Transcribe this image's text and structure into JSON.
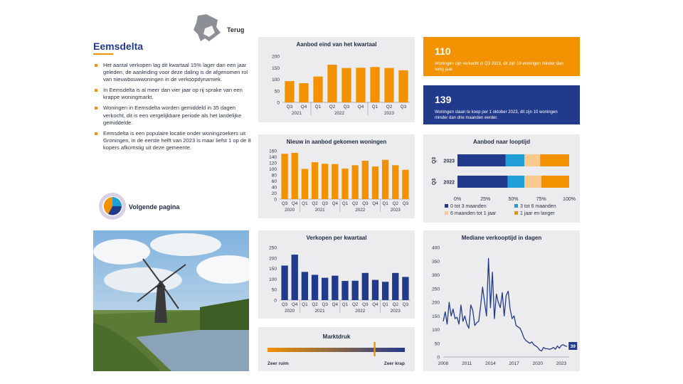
{
  "page": {
    "title": "Eemsdelta",
    "back_label": "Terug",
    "next_label": "Volgende pagina",
    "bullets": [
      "Het aantal verkopen lag dit kwartaal 15% lager dan een jaar geleden, de aanleiding voor deze daling is de afgenomen rol van nieuwbouwwoningen in de verkoopdynamiek.",
      "In Eemsdelta is al meer dan vier jaar op rij sprake van een krappe woningmarkt.",
      "Woningen in Eemsdelta worden gemiddeld in 35 dagen verkocht, dit is een vergelijkbare periode als het landelijke gemiddelde.",
      "Eemsdelta is een populaire locatie onder woningzoekers uit Groningen, in de eerste helft van 2023 is maar liefst 1 op de 8 kopers afkomstig uit deze gemeente."
    ]
  },
  "colors": {
    "orange": "#f39200",
    "navy": "#223a8c",
    "panel": "#ececee"
  },
  "kpis": [
    {
      "value": "110",
      "text": "Woningen zijn verkocht in Q3 2023, dit zijn 19 woningen minder dan vorig jaar.",
      "color": "#f39200"
    },
    {
      "value": "139",
      "text": "Woningen staan te koop per 1 oktober 2023, dit zijn 10 woningen minder dan drie maanden eerder.",
      "color": "#223a8c"
    }
  ],
  "chart_data": [
    {
      "id": "aanbod",
      "type": "bar",
      "title": "Aanbod eind van het kwartaal",
      "color": "#f39200",
      "categories": [
        "Q3",
        "Q4",
        "Q1",
        "Q2",
        "Q3",
        "Q4",
        "Q1",
        "Q2",
        "Q3"
      ],
      "groups": [
        {
          "label": "2021",
          "span": 2
        },
        {
          "label": "2022",
          "span": 4
        },
        {
          "label": "2023",
          "span": 3
        }
      ],
      "values": [
        92,
        83,
        112,
        163,
        149,
        150,
        153,
        149,
        139
      ],
      "ylim": [
        0,
        200
      ],
      "yticks": [
        0,
        50,
        100,
        150,
        200
      ]
    },
    {
      "id": "nieuw",
      "type": "bar",
      "title": "Nieuw in aanbod gekomen woningen",
      "color": "#f39200",
      "categories": [
        "Q3",
        "Q4",
        "Q1",
        "Q2",
        "Q3",
        "Q4",
        "Q1",
        "Q2",
        "Q3",
        "Q4",
        "Q1",
        "Q2",
        "Q3"
      ],
      "groups": [
        {
          "label": "2020",
          "span": 2
        },
        {
          "label": "2021",
          "span": 4
        },
        {
          "label": "2022",
          "span": 4
        },
        {
          "label": "2023",
          "span": 3
        }
      ],
      "values": [
        150,
        153,
        100,
        122,
        117,
        116,
        101,
        112,
        127,
        108,
        130,
        112,
        97
      ],
      "ylim": [
        0,
        160
      ],
      "yticks": [
        0,
        20,
        40,
        60,
        80,
        100,
        120,
        140,
        160
      ]
    },
    {
      "id": "verkopen",
      "type": "bar",
      "title": "Verkopen per kwartaal",
      "color": "#223a8c",
      "categories": [
        "Q3",
        "Q4",
        "Q1",
        "Q2",
        "Q3",
        "Q4",
        "Q1",
        "Q2",
        "Q3",
        "Q4",
        "Q1",
        "Q2",
        "Q3"
      ],
      "groups": [
        {
          "label": "2020",
          "span": 2
        },
        {
          "label": "2021",
          "span": 4
        },
        {
          "label": "2022",
          "span": 4
        },
        {
          "label": "2023",
          "span": 3
        }
      ],
      "values": [
        164,
        216,
        134,
        120,
        106,
        116,
        91,
        92,
        129,
        96,
        87,
        129,
        110
      ],
      "ylim": [
        0,
        250
      ],
      "yticks": [
        0,
        50,
        100,
        150,
        200,
        250
      ]
    },
    {
      "id": "looptijd",
      "type": "bar",
      "stacked": true,
      "horizontal": true,
      "title": "Aanbod naar looptijd",
      "categories": [
        "2023",
        "2022"
      ],
      "group_label": "Q3",
      "xticks": [
        "0%",
        "25%",
        "50%",
        "75%",
        "100%"
      ],
      "series": [
        {
          "name": "0 tot 3 maanden",
          "color": "#223a8c",
          "values": [
            43,
            45
          ]
        },
        {
          "name": "3 tot 6 maanden",
          "color": "#1f9fd6",
          "values": [
            17,
            15
          ]
        },
        {
          "name": "6 maanden tot 1 jaar",
          "color": "#fbc98c",
          "values": [
            14,
            15
          ]
        },
        {
          "name": "1 jaar en langer",
          "color": "#f39200",
          "values": [
            26,
            25
          ]
        }
      ]
    },
    {
      "id": "verkooptijd",
      "type": "line",
      "title": "Mediane verkooptijd in dagen",
      "color": "#223a8c",
      "x": [
        2008.0,
        2008.25,
        2008.5,
        2008.75,
        2009.0,
        2009.25,
        2009.5,
        2009.75,
        2010.0,
        2010.25,
        2010.5,
        2010.75,
        2011.0,
        2011.25,
        2011.5,
        2011.75,
        2012.0,
        2012.25,
        2012.5,
        2012.75,
        2013.0,
        2013.25,
        2013.5,
        2013.75,
        2014.0,
        2014.25,
        2014.5,
        2014.75,
        2015.0,
        2015.25,
        2015.5,
        2015.75,
        2016.0,
        2016.25,
        2016.5,
        2016.75,
        2017.0,
        2017.25,
        2017.5,
        2017.75,
        2018.0,
        2018.25,
        2018.5,
        2018.75,
        2019.0,
        2019.25,
        2019.5,
        2019.75,
        2020.0,
        2020.25,
        2020.5,
        2020.75,
        2021.0,
        2021.25,
        2021.5,
        2021.75,
        2022.0,
        2022.25,
        2022.5,
        2022.75,
        2023.0,
        2023.25,
        2023.5,
        2023.75
      ],
      "y": [
        130,
        165,
        120,
        200,
        150,
        175,
        140,
        145,
        120,
        190,
        130,
        150,
        120,
        105,
        190,
        170,
        115,
        125,
        130,
        185,
        255,
        200,
        150,
        360,
        180,
        310,
        140,
        230,
        200,
        180,
        235,
        150,
        225,
        240,
        175,
        140,
        150,
        115,
        110,
        105,
        90,
        70,
        60,
        55,
        50,
        55,
        45,
        40,
        35,
        25,
        22,
        35,
        30,
        30,
        28,
        30,
        35,
        28,
        40,
        32,
        42,
        45,
        40,
        39
      ],
      "xticks": [
        2008,
        2011,
        2014,
        2017,
        2020,
        2023
      ],
      "ylim": [
        0,
        400
      ],
      "yticks": [
        0,
        50,
        100,
        150,
        200,
        250,
        300,
        350,
        400
      ],
      "last_label": "39"
    },
    {
      "id": "marktdruk",
      "type": "bar",
      "title": "Marktdruk",
      "left_label": "Zeer ruim",
      "right_label": "Zeer krap",
      "value": 0.78
    }
  ]
}
